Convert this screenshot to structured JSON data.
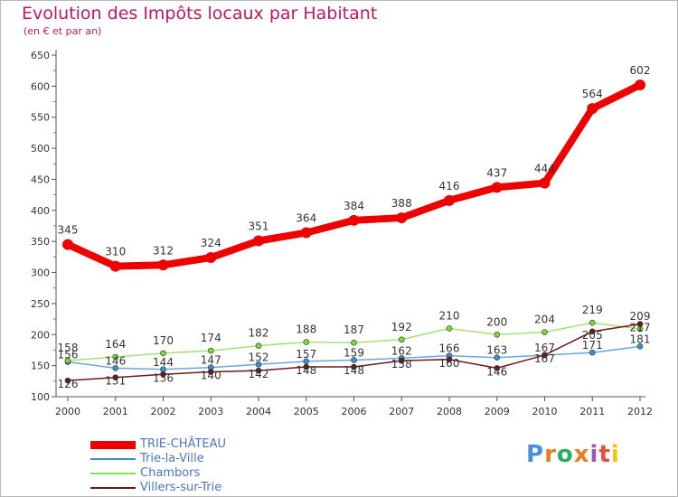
{
  "title": "Evolution des Impôts locaux par Habitant",
  "subtitle": "(en € et par an)",
  "logo": {
    "text": "Proxiti",
    "letter_colors": [
      "#4a90d9",
      "#e67e22",
      "#27ae60",
      "#e67e22",
      "#9b59b6",
      "#e74c3c",
      "#f1c40f"
    ]
  },
  "chart_data": {
    "type": "line",
    "title": "Evolution des Impôts locaux par Habitant",
    "subtitle": "(en € et par an)",
    "xlabel": "",
    "ylabel": "",
    "x": [
      "2000",
      "2001",
      "2002",
      "2003",
      "2004",
      "2005",
      "2006",
      "2007",
      "2008",
      "2009",
      "2010",
      "2011",
      "2012"
    ],
    "ylim": [
      100,
      650
    ],
    "yticks": [
      "100",
      "150",
      "200",
      "250",
      "300",
      "350",
      "400",
      "450",
      "500",
      "550",
      "600",
      "650"
    ],
    "grid": false,
    "legend_position": "bottom-left",
    "series": [
      {
        "name": "TRIE-CHÂTEAU",
        "color": "#ee0000",
        "values": [
          345,
          310,
          312,
          324,
          351,
          364,
          384,
          388,
          416,
          437,
          444,
          564,
          602
        ]
      },
      {
        "name": "Trie-la-Ville",
        "color": "#3a8fd1",
        "values": [
          156,
          146,
          144,
          147,
          152,
          157,
          159,
          162,
          166,
          163,
          167,
          171,
          181
        ]
      },
      {
        "name": "Chambors",
        "color": "#66dd22",
        "values": [
          158,
          164,
          170,
          174,
          182,
          188,
          187,
          192,
          210,
          200,
          204,
          219,
          209
        ]
      },
      {
        "name": "Villers-sur-Trie",
        "color": "#6e1a1a",
        "values": [
          126,
          131,
          136,
          140,
          142,
          148,
          148,
          158,
          160,
          146,
          167,
          205,
          217
        ]
      }
    ],
    "point_labels": [
      [
        "345",
        "310",
        "312",
        "324",
        "351",
        "364",
        "384",
        "388",
        "416",
        "437",
        "444",
        "564",
        "602"
      ],
      [
        "156",
        "146",
        "144",
        "147",
        "152",
        "157",
        "159",
        "162",
        "166",
        "163",
        "167",
        "171",
        "181"
      ],
      [
        "158",
        "164",
        "170",
        "174",
        "182",
        "188",
        "187",
        "192",
        "210",
        "200",
        "204",
        "219",
        "209"
      ],
      [
        "126",
        "131",
        "136",
        "140",
        "142",
        "148",
        "148",
        "158",
        "160",
        "146",
        "167",
        "205",
        "217"
      ]
    ]
  }
}
